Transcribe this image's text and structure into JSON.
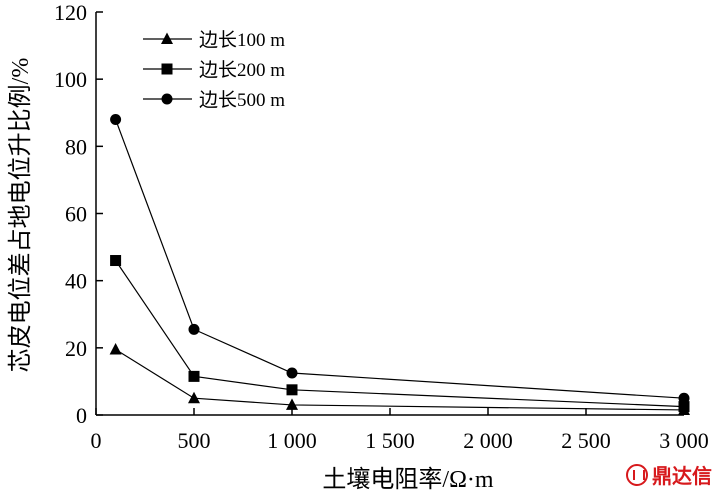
{
  "chart_data": {
    "type": "line",
    "title": "",
    "xlabel": "土壤电阻率/Ω·m",
    "ylabel": "芯皮电位差占地电位升比例/%",
    "xlim": [
      0,
      3000
    ],
    "ylim": [
      0,
      120
    ],
    "x_ticks": [
      0,
      500,
      1000,
      1500,
      2000,
      2500,
      3000
    ],
    "x_tick_labels": [
      "0",
      "500",
      "1 000",
      "1 500",
      "2 000",
      "2 500",
      "3 000"
    ],
    "y_ticks": [
      0,
      20,
      40,
      60,
      80,
      100,
      120
    ],
    "y_tick_labels": [
      "0",
      "20",
      "40",
      "60",
      "80",
      "100",
      "120"
    ],
    "grid": false,
    "legend_position": "top-left",
    "x": [
      100,
      500,
      1000,
      3000
    ],
    "series": [
      {
        "name": "边长100 m",
        "marker": "triangle",
        "values": [
          19.5,
          5,
          3,
          1.5
        ]
      },
      {
        "name": "边长200 m",
        "marker": "square",
        "values": [
          46,
          11.5,
          7.5,
          2.5
        ]
      },
      {
        "name": "边长500 m",
        "marker": "circle",
        "values": [
          88,
          25.5,
          12.5,
          5
        ]
      }
    ]
  },
  "watermark": {
    "text": "鼎达信",
    "color": "#d7191c"
  }
}
